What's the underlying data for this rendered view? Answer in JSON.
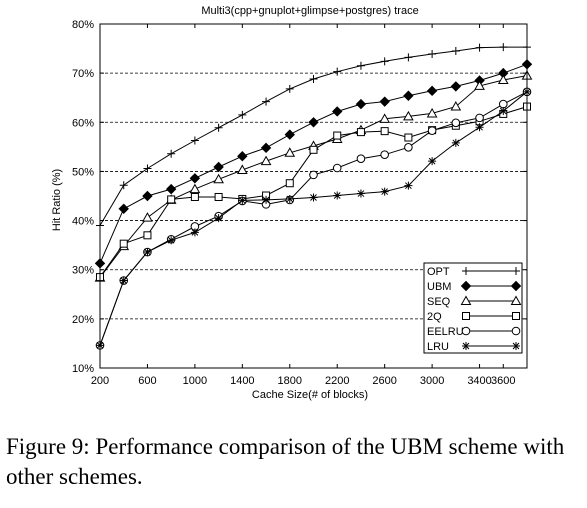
{
  "caption": "Figure 9: Performance comparison of the UBM scheme with other schemes.",
  "chart_data": {
    "type": "line",
    "title": "Multi3(cpp+gnuplot+glimpse+postgres) trace",
    "xlabel": "Cache Size(# of blocks)",
    "ylabel": "Hit Ratio (%)",
    "xlim": [
      200,
      3800
    ],
    "ylim": [
      10,
      80
    ],
    "x_ticks": [
      200,
      600,
      1000,
      1400,
      1800,
      2200,
      2600,
      3000,
      3400,
      3600
    ],
    "x_tick_labels": [
      "200",
      "600",
      "1000",
      "1400",
      "1800",
      "2200",
      "2600",
      "3000",
      "3400",
      "3600"
    ],
    "y_ticks": [
      10,
      20,
      30,
      40,
      50,
      60,
      70,
      80
    ],
    "y_tick_labels": [
      "10%",
      "20%",
      "30%",
      "40%",
      "50%",
      "60%",
      "70%",
      "80%"
    ],
    "grid": "horizontal dashed",
    "legend_position": "bottom-right",
    "x": [
      200,
      400,
      600,
      800,
      1000,
      1200,
      1400,
      1600,
      1800,
      2000,
      2200,
      2400,
      2600,
      2800,
      3000,
      3200,
      3400,
      3600,
      3800
    ],
    "series": [
      {
        "name": "OPT",
        "marker": "plus",
        "values": [
          39.0,
          47.2,
          50.6,
          53.6,
          56.3,
          58.9,
          61.5,
          64.2,
          66.8,
          68.8,
          70.3,
          71.5,
          72.4,
          73.2,
          73.9,
          74.5,
          75.2,
          75.3,
          75.3
        ]
      },
      {
        "name": "UBM",
        "marker": "diamond",
        "values": [
          31.3,
          42.4,
          45.0,
          46.4,
          48.6,
          50.9,
          53.1,
          54.8,
          57.5,
          60.0,
          62.2,
          63.7,
          64.2,
          65.4,
          66.4,
          67.3,
          68.5,
          70.0,
          71.8
        ]
      },
      {
        "name": "SEQ",
        "marker": "triangle",
        "values": [
          28.4,
          34.8,
          40.6,
          44.2,
          46.4,
          48.4,
          50.3,
          52.1,
          53.8,
          55.2,
          56.6,
          58.4,
          60.7,
          61.2,
          61.8,
          63.2,
          67.4,
          68.6,
          69.5
        ]
      },
      {
        "name": "2Q",
        "marker": "square",
        "values": [
          28.5,
          35.3,
          37.0,
          44.3,
          44.8,
          44.8,
          44.4,
          45.1,
          47.6,
          54.4,
          57.3,
          58.0,
          58.2,
          56.9,
          58.4,
          59.3,
          60.2,
          61.7,
          63.2
        ]
      },
      {
        "name": "EELRU",
        "marker": "circle",
        "values": [
          14.6,
          27.8,
          33.6,
          36.2,
          38.8,
          40.9,
          44.0,
          43.3,
          44.2,
          49.3,
          50.7,
          52.6,
          53.4,
          54.9,
          58.3,
          59.9,
          60.9,
          63.7,
          66.2
        ]
      },
      {
        "name": "LRU",
        "marker": "star",
        "values": [
          14.6,
          27.8,
          33.6,
          36.0,
          37.6,
          40.5,
          44.1,
          44.2,
          44.4,
          44.7,
          45.1,
          45.5,
          45.9,
          47.1,
          52.1,
          55.8,
          59.0,
          62.3,
          66.2
        ]
      }
    ]
  }
}
